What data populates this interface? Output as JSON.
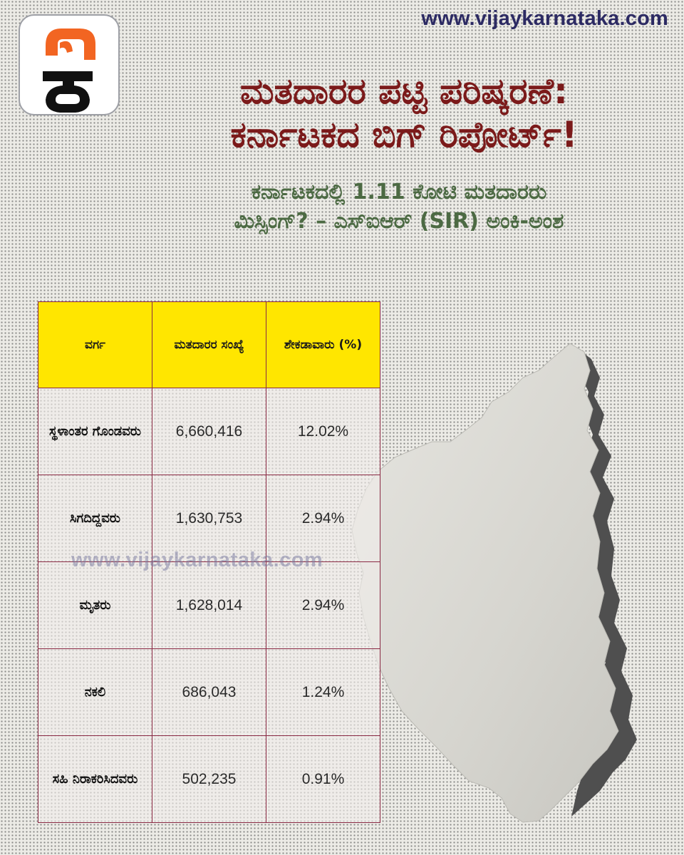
{
  "site_url": "www.vijaykarnataka.com",
  "logo": {
    "name": "vijay-karnataka-logo",
    "text": "ವಿಕ",
    "accent": "#f26522",
    "dark": "#111111"
  },
  "headline": {
    "line1": "ಮತದಾರರ ಪಟ್ಟಿ ಪರಿಷ್ಕರಣೆ:",
    "line2": "ಕರ್ನಾಟಕದ ಬಿಗ್ ರಿಪೋರ್ಟ್!"
  },
  "subhead": {
    "line1": "ಕರ್ನಾಟಕದಲ್ಲಿ 1.11 ಕೋಟಿ ಮತದಾರರು",
    "line2": "ಮಿಸ್ಸಿಂಗ್? – ಎಸ್‌ಐಆರ್ (SIR) ಅಂಕಿ-ಅಂಶ"
  },
  "table": {
    "headers": [
      "ವರ್ಗ",
      "ಮತದಾರರ ಸಂಖ್ಯೆ",
      "ಶೇಕಡಾವಾರು (%)"
    ],
    "rows": [
      {
        "category": "ಸ್ಥಳಾಂತರ ಗೊಂಡವರು",
        "voters": "6,660,416",
        "percent": "12.02%"
      },
      {
        "category": "ಸಿಗದಿದ್ದವರು",
        "voters": "1,630,753",
        "percent": "2.94%"
      },
      {
        "category": "ಮೃತರು",
        "voters": "1,628,014",
        "percent": "2.94%"
      },
      {
        "category": "ನಕಲಿ",
        "voters": "686,043",
        "percent": "1.24%"
      },
      {
        "category": "ಸಹಿ ನಿರಾಕರಿಸಿದವರು",
        "voters": "502,235",
        "percent": "0.91%"
      }
    ]
  },
  "watermark": "www.vijaykarnataka.com",
  "colors": {
    "headline": "#7b1a1a",
    "subhead": "#4c6a43",
    "header_fill": "#ffe600",
    "table_border": "#8a2a44",
    "url": "#2c2a63",
    "map_fill": "#d9d8d2",
    "map_shadow": "#555555"
  }
}
